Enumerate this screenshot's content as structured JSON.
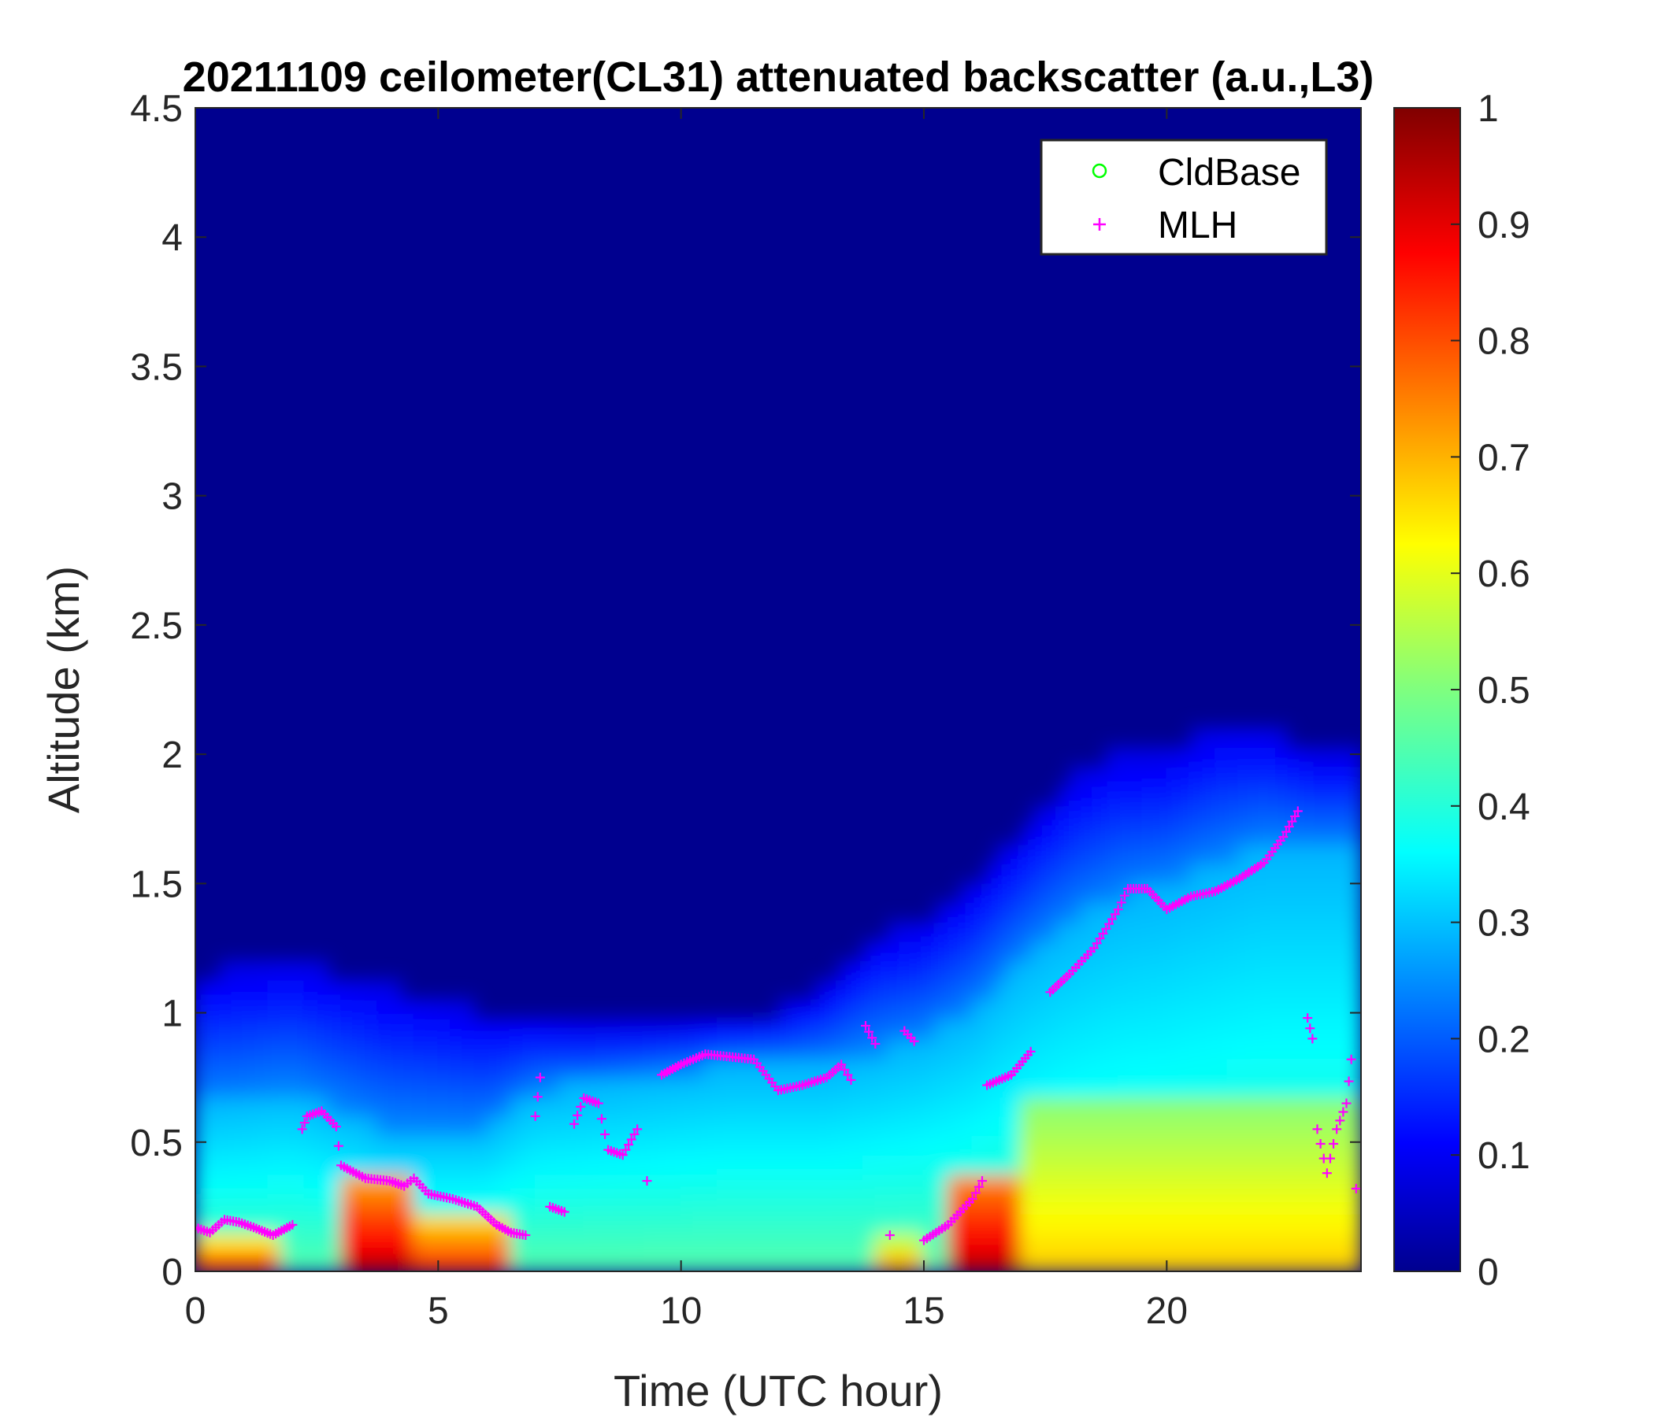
{
  "chart_data": {
    "type": "heatmap",
    "title": "20211109 ceilometer(CL31) attenuated backscatter (a.u.,L3)",
    "xlabel": "Time (UTC hour)",
    "ylabel": "Altitude (km)",
    "xlim": [
      0,
      24
    ],
    "ylim": [
      0,
      4.5
    ],
    "xticks": [
      0,
      5,
      10,
      15,
      20
    ],
    "xtick_labels": [
      "0",
      "5",
      "10",
      "15",
      "20"
    ],
    "yticks": [
      0,
      0.5,
      1,
      1.5,
      2,
      2.5,
      3,
      3.5,
      4,
      4.5
    ],
    "ytick_labels": [
      "0",
      "0.5",
      "1",
      "1.5",
      "2",
      "2.5",
      "3",
      "3.5",
      "4",
      "4.5"
    ],
    "colorbar": {
      "colormap": "jet",
      "range": [
        0,
        1
      ],
      "ticks": [
        0,
        0.1,
        0.2,
        0.3,
        0.4,
        0.5,
        0.6,
        0.7,
        0.8,
        0.9,
        1
      ],
      "tick_labels": [
        "0",
        "0.1",
        "0.2",
        "0.3",
        "0.4",
        "0.5",
        "0.6",
        "0.7",
        "0.8",
        "0.9",
        "1"
      ]
    },
    "legend": {
      "position": "top-right",
      "entries": [
        {
          "name": "CldBase",
          "marker": "circle",
          "color": "#00ff00"
        },
        {
          "name": "MLH",
          "marker": "plus",
          "color": "#ff00ff"
        }
      ]
    },
    "backscatter_structure": {
      "layer_top_km": [
        [
          0,
          1.15
        ],
        [
          2,
          1.2
        ],
        [
          4,
          1.1
        ],
        [
          6,
          1.0
        ],
        [
          8,
          0.95
        ],
        [
          10,
          0.95
        ],
        [
          12,
          1.0
        ],
        [
          13,
          1.1
        ],
        [
          14,
          1.3
        ],
        [
          15,
          1.35
        ],
        [
          16,
          1.5
        ],
        [
          17,
          1.7
        ],
        [
          18,
          1.9
        ],
        [
          19,
          2.0
        ],
        [
          20,
          2.0
        ],
        [
          21,
          2.1
        ],
        [
          22,
          2.1
        ],
        [
          23,
          2.0
        ],
        [
          24,
          2.0
        ]
      ],
      "mid_layer_top_km": [
        [
          0,
          0.65
        ],
        [
          2,
          0.7
        ],
        [
          4,
          0.55
        ],
        [
          6,
          0.55
        ],
        [
          7,
          0.7
        ],
        [
          9,
          0.75
        ],
        [
          11,
          0.8
        ],
        [
          13,
          0.8
        ],
        [
          14,
          0.85
        ],
        [
          15,
          0.9
        ],
        [
          16,
          1.0
        ],
        [
          17,
          1.2
        ],
        [
          18,
          1.35
        ],
        [
          19,
          1.45
        ],
        [
          20,
          1.5
        ],
        [
          22,
          1.65
        ],
        [
          24,
          1.65
        ]
      ],
      "high_zones": [
        {
          "t0": 0,
          "t1": 1.8,
          "z0": 0,
          "z1": 0.12,
          "v": 0.85
        },
        {
          "t0": 3.0,
          "t1": 4.6,
          "z0": 0,
          "z1": 0.35,
          "v": 0.95
        },
        {
          "t0": 4.6,
          "t1": 6.5,
          "z0": 0,
          "z1": 0.22,
          "v": 0.85
        },
        {
          "t0": 14.0,
          "t1": 14.9,
          "z0": 0,
          "z1": 0.12,
          "v": 0.75
        },
        {
          "t0": 15.5,
          "t1": 17.0,
          "z0": 0,
          "z1": 0.4,
          "v": 0.95
        },
        {
          "t0": 17.0,
          "t1": 24,
          "z0": 0,
          "z1": 0.65,
          "v": 0.68
        }
      ]
    },
    "series": [
      {
        "name": "MLH",
        "points": [
          [
            0.0,
            0.17
          ],
          [
            0.3,
            0.15
          ],
          [
            0.6,
            0.2
          ],
          [
            0.9,
            0.19
          ],
          [
            1.2,
            0.17
          ],
          [
            1.6,
            0.14
          ],
          [
            2.0,
            0.18
          ],
          [
            2.2,
            0.55
          ],
          [
            2.3,
            0.6
          ],
          [
            2.6,
            0.62
          ],
          [
            2.9,
            0.56
          ],
          [
            3.0,
            0.41
          ],
          [
            3.5,
            0.36
          ],
          [
            4.0,
            0.35
          ],
          [
            4.3,
            0.33
          ],
          [
            4.5,
            0.36
          ],
          [
            4.8,
            0.3
          ],
          [
            5.3,
            0.28
          ],
          [
            5.8,
            0.25
          ],
          [
            6.2,
            0.18
          ],
          [
            6.5,
            0.15
          ],
          [
            6.8,
            0.14
          ],
          [
            7.0,
            0.6
          ],
          [
            7.1,
            0.75
          ],
          [
            7.3,
            0.25
          ],
          [
            7.6,
            0.23
          ],
          [
            7.8,
            0.57
          ],
          [
            8.0,
            0.67
          ],
          [
            8.3,
            0.65
          ],
          [
            8.5,
            0.47
          ],
          [
            8.8,
            0.45
          ],
          [
            9.1,
            0.55
          ],
          [
            9.3,
            0.35
          ],
          [
            9.6,
            0.76
          ],
          [
            10.0,
            0.8
          ],
          [
            10.5,
            0.84
          ],
          [
            11.0,
            0.83
          ],
          [
            11.5,
            0.82
          ],
          [
            12.0,
            0.7
          ],
          [
            12.5,
            0.72
          ],
          [
            13.0,
            0.75
          ],
          [
            13.3,
            0.8
          ],
          [
            13.5,
            0.74
          ],
          [
            13.8,
            0.95
          ],
          [
            14.0,
            0.88
          ],
          [
            14.3,
            0.14
          ],
          [
            14.6,
            0.93
          ],
          [
            14.8,
            0.89
          ],
          [
            15.0,
            0.12
          ],
          [
            15.5,
            0.18
          ],
          [
            16.0,
            0.28
          ],
          [
            16.2,
            0.35
          ],
          [
            16.3,
            0.72
          ],
          [
            16.8,
            0.76
          ],
          [
            17.2,
            0.85
          ],
          [
            17.6,
            1.08
          ],
          [
            18.0,
            1.15
          ],
          [
            18.5,
            1.25
          ],
          [
            19.0,
            1.4
          ],
          [
            19.2,
            1.48
          ],
          [
            19.6,
            1.48
          ],
          [
            20.0,
            1.4
          ],
          [
            20.5,
            1.45
          ],
          [
            21.0,
            1.47
          ],
          [
            21.5,
            1.52
          ],
          [
            22.0,
            1.58
          ],
          [
            22.4,
            1.68
          ],
          [
            22.7,
            1.78
          ],
          [
            22.9,
            0.98
          ],
          [
            23.0,
            0.9
          ],
          [
            23.1,
            0.55
          ],
          [
            23.3,
            0.38
          ],
          [
            23.5,
            0.55
          ],
          [
            23.7,
            0.65
          ],
          [
            23.8,
            0.82
          ],
          [
            23.9,
            0.32
          ]
        ]
      }
    ]
  }
}
